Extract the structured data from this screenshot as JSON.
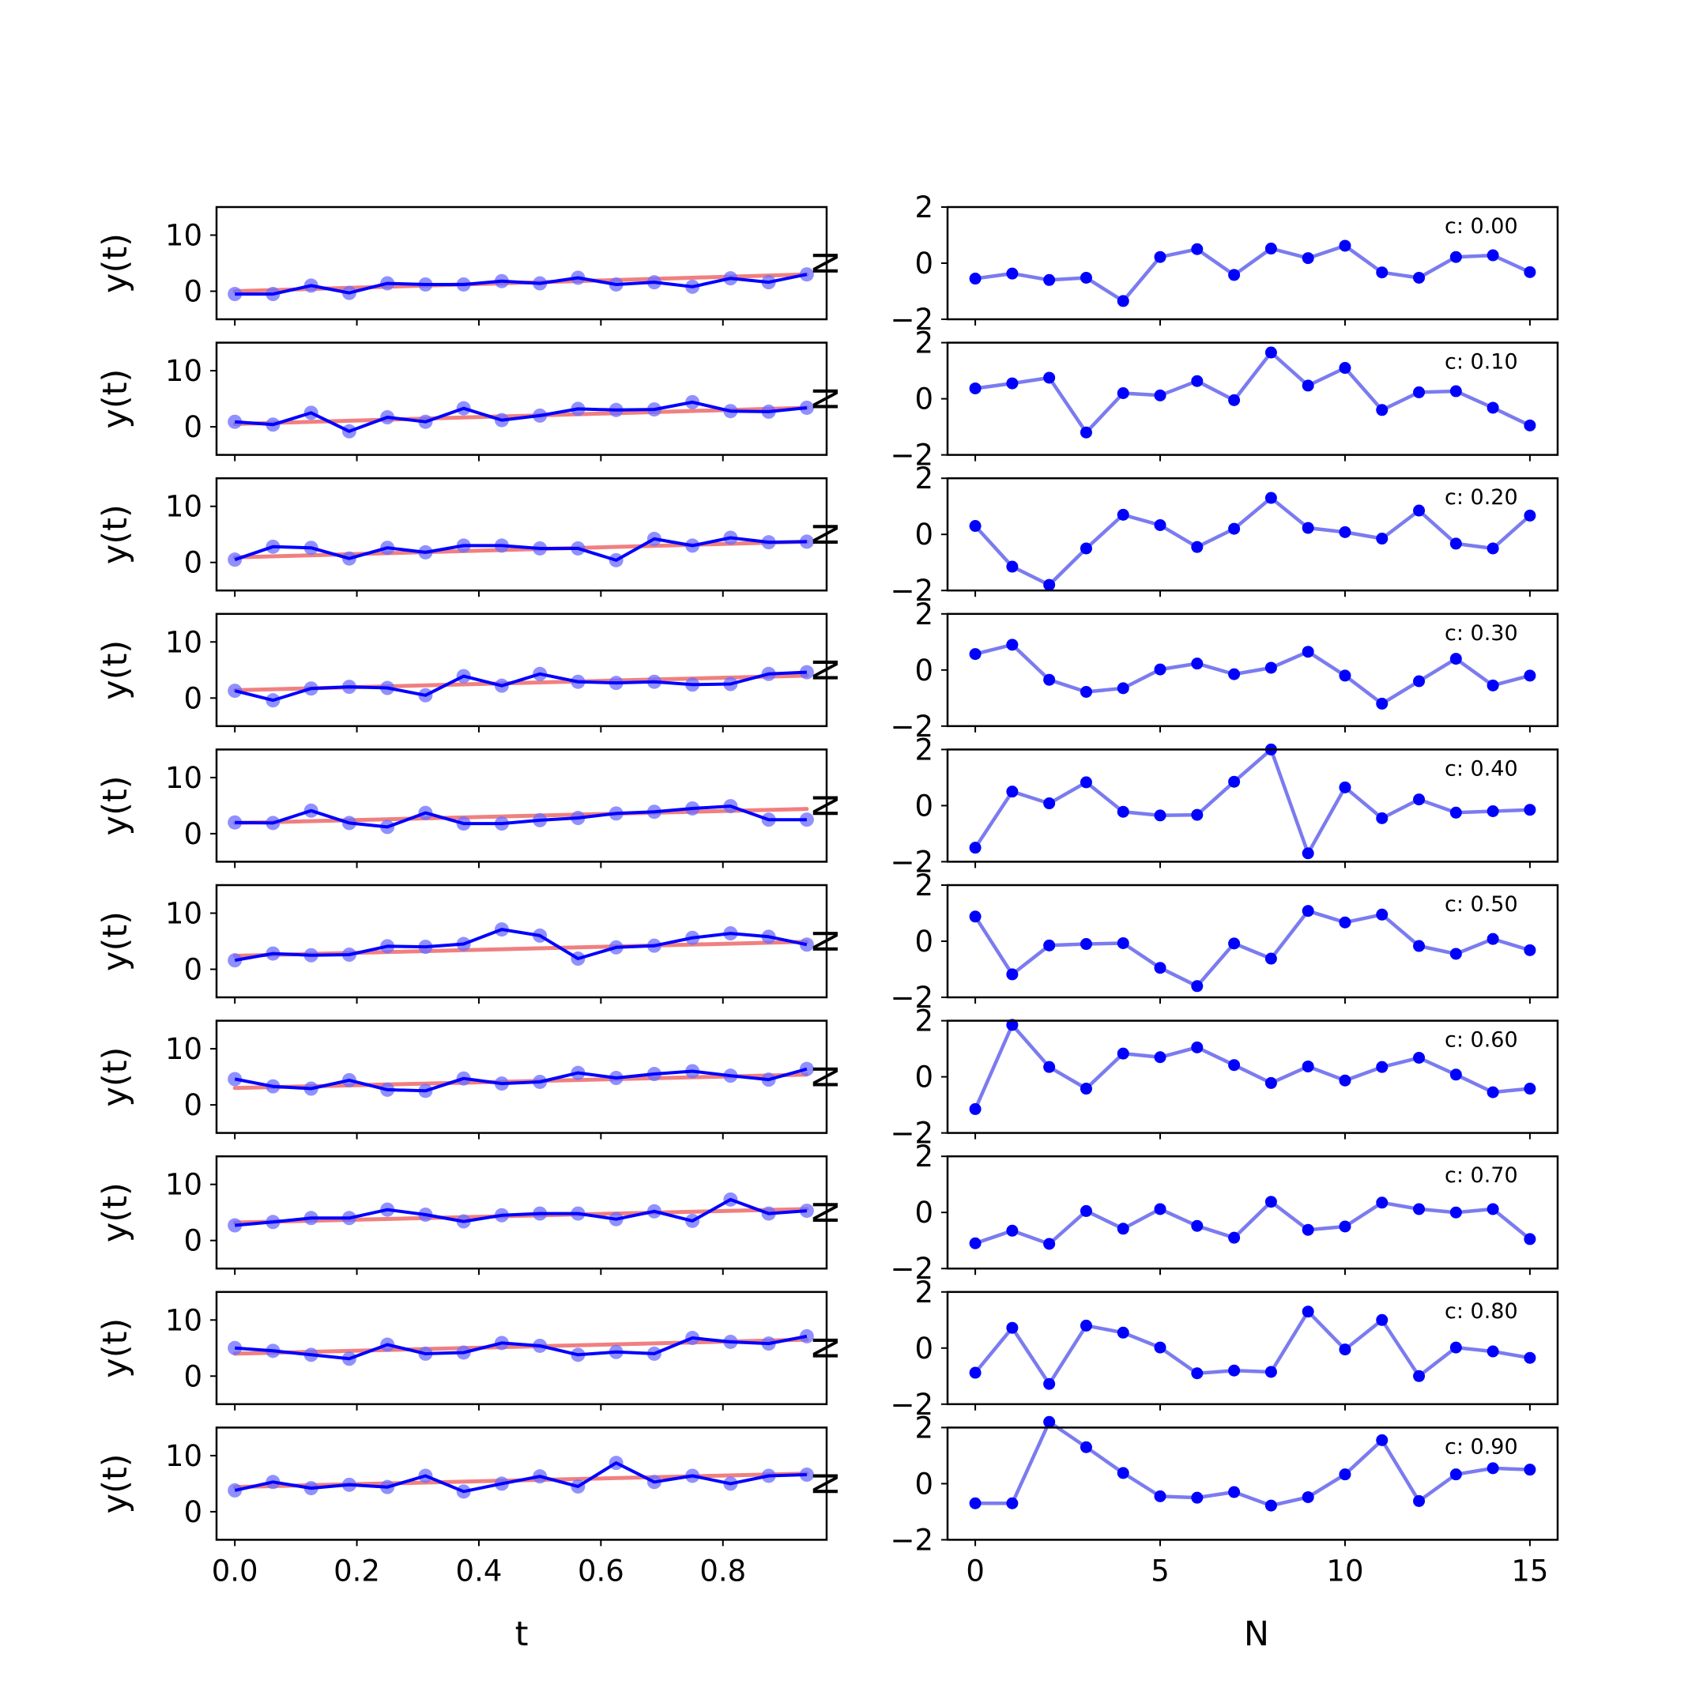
{
  "chart_data": [
    {
      "type": "line",
      "panel": "left",
      "xlabel": "t",
      "ylabel": "y(t)",
      "ylim": [
        -5,
        15
      ],
      "xlim": [
        -0.03,
        0.97
      ],
      "yticks": [
        0,
        10
      ],
      "xticks": [
        0.0,
        0.2,
        0.4,
        0.6,
        0.8
      ],
      "xtick_labels": [
        "0.0",
        "0.2",
        "0.4",
        "0.6",
        "0.8"
      ],
      "ytick_labels": [
        "0",
        "10"
      ],
      "x": [
        0.0,
        0.0625,
        0.125,
        0.1875,
        0.25,
        0.3125,
        0.375,
        0.4375,
        0.5,
        0.5625,
        0.625,
        0.6875,
        0.75,
        0.8125,
        0.875,
        0.9375
      ],
      "colors": {
        "observed": "#0000ff",
        "markers": "#6b6bff",
        "trend": "#f08080"
      },
      "series": [
        {
          "c": 0.0,
          "values": [
            -0.5,
            -0.5,
            1.0,
            -0.3,
            1.4,
            1.2,
            1.2,
            1.8,
            1.4,
            2.4,
            1.2,
            1.6,
            0.8,
            2.3,
            1.6,
            3.0
          ],
          "trend": [
            0.0,
            3.0
          ]
        },
        {
          "c": 0.1,
          "values": [
            0.9,
            0.4,
            2.5,
            -0.8,
            1.7,
            0.9,
            3.3,
            1.2,
            2.0,
            3.2,
            3.0,
            3.1,
            4.4,
            2.8,
            2.7,
            3.4
          ],
          "trend": [
            0.5,
            3.4
          ]
        },
        {
          "c": 0.2,
          "values": [
            0.5,
            2.8,
            2.6,
            0.7,
            2.6,
            1.8,
            3.0,
            3.0,
            2.5,
            2.5,
            0.4,
            4.2,
            3.0,
            4.4,
            3.6,
            3.7
          ],
          "trend": [
            0.9,
            3.7
          ]
        },
        {
          "c": 0.3,
          "values": [
            1.3,
            -0.4,
            1.7,
            2.0,
            1.8,
            0.5,
            3.9,
            2.2,
            4.3,
            2.9,
            2.7,
            2.9,
            2.4,
            2.5,
            4.3,
            4.6
          ],
          "trend": [
            1.4,
            4.0
          ]
        },
        {
          "c": 0.4,
          "values": [
            2.0,
            1.9,
            4.1,
            1.9,
            1.2,
            3.7,
            1.8,
            1.8,
            2.4,
            2.8,
            3.6,
            3.9,
            4.5,
            4.9,
            2.5,
            2.5
          ],
          "trend": [
            1.9,
            4.4
          ]
        },
        {
          "c": 0.5,
          "values": [
            1.6,
            2.8,
            2.5,
            2.6,
            4.1,
            4.0,
            4.5,
            7.1,
            6.0,
            1.9,
            3.9,
            4.2,
            5.6,
            6.4,
            5.8,
            4.4
          ],
          "trend": [
            2.4,
            4.9
          ]
        },
        {
          "c": 0.6,
          "values": [
            4.6,
            3.3,
            2.9,
            4.4,
            2.7,
            2.5,
            4.7,
            3.8,
            4.1,
            5.7,
            4.8,
            5.5,
            6.0,
            5.2,
            4.5,
            6.4
          ],
          "trend": [
            3.0,
            5.4
          ]
        },
        {
          "c": 0.7,
          "values": [
            2.7,
            3.3,
            4.0,
            4.0,
            5.5,
            4.6,
            3.4,
            4.5,
            4.8,
            4.8,
            3.8,
            5.2,
            3.5,
            7.3,
            4.8,
            5.3
          ],
          "trend": [
            3.2,
            5.6
          ]
        },
        {
          "c": 0.8,
          "values": [
            5.0,
            4.5,
            3.8,
            3.1,
            5.6,
            4.0,
            4.2,
            5.9,
            5.4,
            3.8,
            4.3,
            4.0,
            6.8,
            6.1,
            5.8,
            7.1
          ],
          "trend": [
            4.0,
            6.5
          ]
        },
        {
          "c": 0.9,
          "values": [
            3.8,
            5.3,
            4.2,
            4.8,
            4.4,
            6.4,
            3.6,
            5.0,
            6.3,
            4.5,
            8.7,
            5.3,
            6.4,
            5.0,
            6.4,
            6.6
          ],
          "trend": [
            4.4,
            6.8
          ]
        }
      ]
    },
    {
      "type": "line",
      "panel": "right",
      "xlabel": "N",
      "ylabel": "N",
      "ylim": [
        -2,
        2
      ],
      "xlim": [
        -0.75,
        15.75
      ],
      "yticks": [
        -2,
        0,
        2
      ],
      "xticks": [
        0,
        5,
        10,
        15
      ],
      "xtick_labels": [
        "0",
        "5",
        "10",
        "15"
      ],
      "ytick_labels": [
        "−2",
        "0",
        "2"
      ],
      "x": [
        0,
        1,
        2,
        3,
        4,
        5,
        6,
        7,
        8,
        9,
        10,
        11,
        12,
        13,
        14,
        15
      ],
      "colors": {
        "line": "#7b7bf0",
        "markers": "#0000ff"
      },
      "series": [
        {
          "label": "c: 0.00",
          "values": [
            -0.55,
            -0.37,
            -0.6,
            -0.52,
            -1.35,
            0.22,
            0.5,
            -0.42,
            0.52,
            0.18,
            0.62,
            -0.33,
            -0.52,
            0.22,
            0.28,
            -0.32
          ]
        },
        {
          "label": "c: 0.10",
          "values": [
            0.37,
            0.55,
            0.75,
            -1.2,
            0.2,
            0.12,
            0.63,
            -0.05,
            1.65,
            0.47,
            1.1,
            -0.4,
            0.23,
            0.27,
            -0.32,
            -0.95
          ]
        },
        {
          "label": "c: 0.20",
          "values": [
            0.3,
            -1.15,
            -1.8,
            -0.5,
            0.7,
            0.33,
            -0.45,
            0.2,
            1.3,
            0.23,
            0.08,
            -0.15,
            0.85,
            -0.33,
            -0.5,
            0.67
          ]
        },
        {
          "label": "c: 0.30",
          "values": [
            0.57,
            0.9,
            -0.35,
            -0.78,
            -0.65,
            0.02,
            0.23,
            -0.15,
            0.08,
            0.65,
            -0.2,
            -1.2,
            -0.4,
            0.4,
            -0.55,
            -0.2
          ]
        },
        {
          "label": "c: 0.40",
          "values": [
            -1.5,
            0.5,
            0.08,
            0.83,
            -0.22,
            -0.35,
            -0.33,
            0.85,
            2.0,
            -1.7,
            0.65,
            -0.45,
            0.22,
            -0.25,
            -0.2,
            -0.15
          ]
        },
        {
          "label": "c: 0.50",
          "values": [
            0.88,
            -1.18,
            -0.15,
            -0.1,
            -0.07,
            -0.95,
            -1.6,
            -0.08,
            -0.62,
            1.08,
            0.67,
            0.95,
            -0.17,
            -0.45,
            0.08,
            -0.32
          ]
        },
        {
          "label": "c: 0.60",
          "values": [
            -1.15,
            1.85,
            0.35,
            -0.42,
            0.83,
            0.7,
            1.05,
            0.42,
            -0.22,
            0.37,
            -0.13,
            0.35,
            0.68,
            0.08,
            -0.55,
            -0.42
          ]
        },
        {
          "label": "c: 0.70",
          "values": [
            -1.1,
            -0.65,
            -1.12,
            0.05,
            -0.58,
            0.12,
            -0.48,
            -0.9,
            0.38,
            -0.62,
            -0.5,
            0.35,
            0.12,
            0.0,
            0.12,
            -0.95
          ]
        },
        {
          "label": "c: 0.80",
          "values": [
            -0.88,
            0.72,
            -1.28,
            0.8,
            0.55,
            0.02,
            -0.9,
            -0.8,
            -0.85,
            1.3,
            -0.05,
            1.0,
            -1.0,
            0.02,
            -0.12,
            -0.35
          ]
        },
        {
          "label": "c: 0.90",
          "values": [
            -0.7,
            -0.7,
            2.2,
            1.3,
            0.38,
            -0.45,
            -0.5,
            -0.3,
            -0.78,
            -0.48,
            0.33,
            1.55,
            -0.62,
            0.33,
            0.55,
            0.5
          ]
        }
      ]
    }
  ]
}
